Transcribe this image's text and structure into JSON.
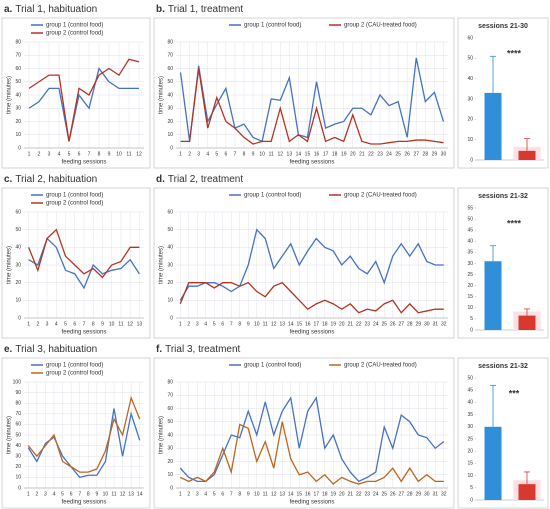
{
  "chart_data": [
    {
      "type": "line",
      "label": "a.",
      "title": "Trial 1, habituation",
      "ylabel": "time (minutes)",
      "xlabel": "feeding sessions",
      "categories": [
        1,
        2,
        3,
        4,
        5,
        6,
        7,
        8,
        9,
        10,
        11,
        12
      ],
      "series": [
        {
          "name": "group 1 (control food)",
          "color": "#4472c4",
          "values": [
            30,
            35,
            45,
            45,
            5,
            40,
            30,
            60,
            50,
            45,
            45,
            45
          ]
        },
        {
          "name": "group 2 (control food)",
          "color": "#b5341f",
          "values": [
            45,
            50,
            55,
            55,
            5,
            45,
            40,
            55,
            60,
            55,
            67,
            65
          ]
        }
      ],
      "ylim": [
        0,
        80
      ],
      "yticks": [
        0,
        10,
        20,
        30,
        40,
        50,
        60,
        70,
        80
      ],
      "grid": true
    },
    {
      "type": "line",
      "label": "b.",
      "title": "Trial 1, treatment",
      "ylabel": "time (minutes)",
      "xlabel": "feeding sessions",
      "categories": [
        1,
        2,
        3,
        4,
        5,
        6,
        7,
        8,
        9,
        10,
        11,
        12,
        13,
        14,
        15,
        16,
        17,
        18,
        19,
        20,
        21,
        22,
        23,
        24,
        25,
        26,
        27,
        28,
        29,
        30
      ],
      "series": [
        {
          "name": "group  1 (control food)",
          "color": "#4472c4",
          "values": [
            57,
            5,
            62,
            20,
            33,
            45,
            15,
            18,
            8,
            5,
            37,
            36,
            53,
            10,
            8,
            50,
            15,
            18,
            20,
            30,
            30,
            25,
            40,
            32,
            35,
            8,
            68,
            35,
            42,
            20
          ]
        },
        {
          "name": "group 2 (CAU-treated food)",
          "color": "#b5341f",
          "values": [
            5,
            5,
            60,
            15,
            38,
            20,
            15,
            8,
            3,
            5,
            5,
            30,
            5,
            10,
            5,
            30,
            5,
            8,
            5,
            25,
            5,
            3,
            3,
            4,
            5,
            5,
            6,
            6,
            5,
            4
          ]
        }
      ],
      "ylim": [
        0,
        80
      ],
      "yticks": [
        0,
        10,
        20,
        30,
        40,
        50,
        60,
        70,
        80
      ],
      "grid": true
    },
    {
      "type": "errorbar",
      "title": "sessions 21-30",
      "annotation": "****",
      "categories": [
        null,
        null
      ],
      "values": [
        33,
        4.5
      ],
      "errors": [
        18,
        6
      ],
      "colors": [
        "#2f8fd8",
        "#d9382e"
      ],
      "ylim": [
        0,
        60
      ],
      "yticks": [
        0,
        10,
        20,
        30,
        40,
        50,
        60
      ]
    },
    {
      "type": "line",
      "label": "c.",
      "title": "Trial 2, habituation",
      "ylabel": "time (minutes)",
      "xlabel": "feeding sessions",
      "categories": [
        1,
        2,
        3,
        4,
        5,
        6,
        7,
        8,
        9,
        10,
        11,
        12,
        13
      ],
      "series": [
        {
          "name": "group 1 (control food)",
          "color": "#4472c4",
          "values": [
            33,
            30,
            45,
            40,
            27,
            25,
            17,
            30,
            25,
            27,
            28,
            33,
            25
          ]
        },
        {
          "name": "group 2 (control food)",
          "color": "#b5341f",
          "values": [
            40,
            27,
            45,
            50,
            35,
            30,
            25,
            28,
            23,
            30,
            32,
            40,
            40
          ]
        }
      ],
      "ylim": [
        0,
        60
      ],
      "yticks": [
        0,
        10,
        20,
        30,
        40,
        50,
        60
      ],
      "grid": true
    },
    {
      "type": "line",
      "label": "d.",
      "title": "Trial 2, treatment",
      "ylabel": "time (minutes)",
      "xlabel": "feeding sessions",
      "categories": [
        1,
        2,
        3,
        4,
        5,
        6,
        7,
        8,
        9,
        10,
        11,
        12,
        13,
        14,
        15,
        16,
        17,
        18,
        19,
        20,
        21,
        22,
        23,
        24,
        25,
        26,
        27,
        28,
        29,
        30,
        31,
        32
      ],
      "series": [
        {
          "name": "group  1 (control food)",
          "color": "#4472c4",
          "values": [
            10,
            18,
            18,
            20,
            20,
            18,
            15,
            18,
            30,
            50,
            45,
            28,
            35,
            42,
            30,
            38,
            45,
            40,
            38,
            30,
            35,
            28,
            25,
            32,
            20,
            35,
            42,
            35,
            42,
            32,
            30,
            30
          ]
        },
        {
          "name": "group 2 (CAU-treated food)",
          "color": "#b5341f",
          "values": [
            8,
            20,
            20,
            20,
            17,
            20,
            20,
            18,
            20,
            15,
            12,
            18,
            20,
            15,
            10,
            5,
            8,
            10,
            8,
            5,
            8,
            3,
            5,
            4,
            8,
            10,
            3,
            8,
            3,
            4,
            5,
            5
          ]
        }
      ],
      "ylim": [
        0,
        60
      ],
      "yticks": [
        0,
        10,
        20,
        30,
        40,
        50,
        60
      ],
      "grid": true
    },
    {
      "type": "errorbar",
      "title": "sessions 21-32",
      "annotation": "****",
      "categories": [
        null,
        null
      ],
      "values": [
        31,
        6.5
      ],
      "errors": [
        7,
        3
      ],
      "colors": [
        "#2f8fd8",
        "#d9382e"
      ],
      "ylim": [
        0,
        55
      ],
      "yticks": [
        0,
        5,
        10,
        15,
        20,
        25,
        30,
        35,
        40,
        45,
        50,
        55
      ]
    },
    {
      "type": "line",
      "label": "e.",
      "title": "Trial 3, habituation",
      "ylabel": "time (minutes)",
      "xlabel": "feeding sessions",
      "categories": [
        1,
        2,
        3,
        4,
        5,
        6,
        7,
        8,
        9,
        10,
        11,
        12,
        13,
        14
      ],
      "series": [
        {
          "name": "group 1 (control food)",
          "color": "#4472c4",
          "values": [
            38,
            25,
            42,
            48,
            30,
            20,
            10,
            12,
            12,
            25,
            75,
            30,
            70,
            45
          ]
        },
        {
          "name": "group 2 (control food)",
          "color": "#c0651c",
          "values": [
            40,
            30,
            40,
            50,
            25,
            20,
            15,
            15,
            18,
            35,
            65,
            50,
            85,
            65
          ]
        }
      ],
      "ylim": [
        0,
        100
      ],
      "yticks": [
        0,
        10,
        20,
        30,
        40,
        50,
        60,
        70,
        80,
        90,
        100
      ],
      "grid": true
    },
    {
      "type": "line",
      "label": "f.",
      "title": "Trial 3, treatment",
      "ylabel": "time (minutes)",
      "xlabel": "feeding sessions",
      "categories": [
        1,
        2,
        3,
        4,
        5,
        6,
        7,
        8,
        9,
        10,
        11,
        12,
        13,
        14,
        15,
        16,
        17,
        18,
        19,
        20,
        21,
        22,
        23,
        24,
        25,
        26,
        27,
        28,
        29,
        30,
        31,
        32
      ],
      "series": [
        {
          "name": "group  1 (control food)",
          "color": "#4472c4",
          "values": [
            15,
            8,
            5,
            5,
            10,
            25,
            40,
            38,
            58,
            40,
            65,
            40,
            58,
            68,
            30,
            58,
            68,
            30,
            40,
            22,
            12,
            5,
            8,
            12,
            46,
            30,
            55,
            50,
            40,
            38,
            30,
            35
          ]
        },
        {
          "name": "group 2 (CAU-treated food)",
          "color": "#c0651c",
          "values": [
            8,
            5,
            8,
            5,
            12,
            30,
            12,
            48,
            45,
            20,
            35,
            15,
            50,
            22,
            10,
            12,
            5,
            10,
            3,
            8,
            5,
            3,
            5,
            5,
            8,
            15,
            5,
            15,
            5,
            10,
            5,
            5
          ]
        }
      ],
      "ylim": [
        0,
        80
      ],
      "yticks": [
        0,
        10,
        20,
        30,
        40,
        50,
        60,
        70,
        80
      ],
      "grid": true
    },
    {
      "type": "errorbar",
      "title": "sessions 21-32",
      "annotation": "***",
      "categories": [
        null,
        null
      ],
      "values": [
        30,
        6.5
      ],
      "errors": [
        17,
        5
      ],
      "colors": [
        "#2f8fd8",
        "#d9382e"
      ],
      "ylim": [
        0,
        50
      ],
      "yticks": [
        0,
        5,
        10,
        15,
        20,
        25,
        30,
        35,
        40,
        45,
        50
      ]
    }
  ]
}
